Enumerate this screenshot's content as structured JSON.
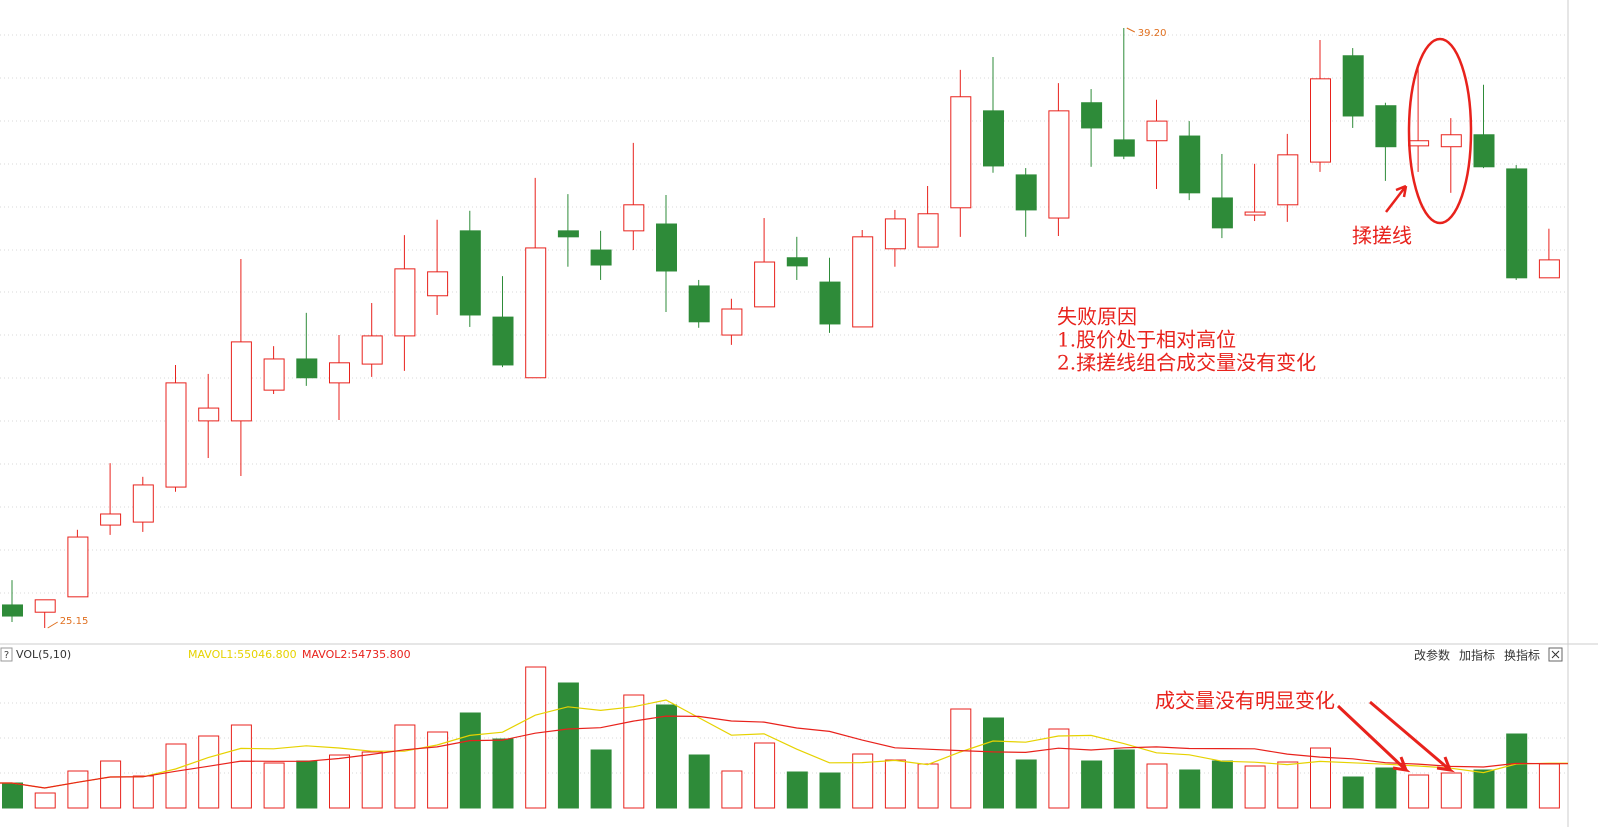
{
  "chart_data": {
    "type": "candlestick",
    "up_color": "#e8221c",
    "down_color": "#2e8b39",
    "open": [
      25.69,
      25.52,
      25.88,
      27.56,
      27.63,
      28.45,
      30.0,
      30.0,
      30.72,
      31.45,
      30.89,
      31.33,
      31.99,
      32.93,
      34.45,
      32.43,
      31.01,
      34.45,
      34.0,
      34.45,
      34.61,
      33.16,
      32.01,
      32.67,
      33.82,
      33.25,
      32.2,
      34.03,
      34.07,
      34.99,
      37.26,
      35.76,
      34.75,
      37.45,
      36.58,
      36.56,
      36.67,
      35.22,
      34.82,
      35.06,
      36.06,
      38.55,
      37.38,
      36.44,
      36.42,
      36.7,
      35.9,
      33.35
    ],
    "high": [
      26.27,
      25.81,
      27.45,
      29.01,
      28.69,
      31.31,
      31.1,
      33.79,
      31.75,
      32.53,
      32.01,
      32.76,
      34.35,
      34.71,
      34.92,
      33.39,
      35.69,
      35.31,
      34.45,
      36.51,
      35.29,
      33.3,
      32.86,
      34.75,
      34.31,
      33.82,
      34.47,
      34.94,
      35.5,
      38.22,
      38.52,
      35.92,
      37.91,
      37.77,
      39.2,
      37.52,
      37.02,
      36.25,
      36.02,
      36.72,
      38.92,
      38.73,
      37.45,
      38.29,
      37.09,
      37.87,
      35.99,
      34.5
    ],
    "low": [
      25.29,
      25.15,
      25.88,
      27.33,
      27.4,
      28.34,
      29.13,
      28.71,
      30.63,
      30.82,
      30.02,
      31.03,
      31.17,
      32.48,
      32.2,
      31.26,
      31.01,
      33.61,
      33.3,
      34.0,
      32.55,
      32.18,
      31.78,
      32.67,
      33.3,
      32.06,
      32.2,
      33.61,
      34.07,
      34.31,
      35.81,
      34.31,
      34.33,
      35.95,
      36.13,
      35.43,
      35.17,
      34.28,
      34.68,
      34.66,
      35.83,
      36.86,
      35.62,
      35.83,
      35.34,
      35.92,
      33.3,
      33.35
    ],
    "close": [
      25.43,
      25.81,
      27.28,
      27.82,
      28.5,
      30.89,
      30.3,
      31.85,
      31.45,
      31.01,
      31.36,
      31.99,
      33.56,
      33.49,
      32.48,
      31.31,
      34.05,
      34.31,
      33.65,
      35.06,
      33.51,
      32.32,
      32.62,
      33.72,
      33.63,
      32.27,
      34.31,
      34.73,
      34.85,
      37.59,
      35.97,
      34.94,
      37.26,
      36.86,
      36.2,
      37.02,
      35.34,
      34.52,
      34.89,
      36.23,
      38.01,
      37.14,
      36.42,
      36.56,
      36.7,
      35.95,
      33.35,
      33.77
    ],
    "volume": [
      31250,
      18750,
      46250,
      58750,
      40000,
      80000,
      90000,
      103750,
      56250,
      58750,
      66250,
      70000,
      103750,
      95000,
      118750,
      86250,
      176250,
      156250,
      72500,
      141250,
      128750,
      66250,
      46250,
      81250,
      45000,
      43750,
      67500,
      60000,
      55000,
      123750,
      112500,
      60000,
      98750,
      58750,
      72500,
      55000,
      47500,
      58750,
      52500,
      57500,
      75000,
      38750,
      50000,
      41250,
      43750,
      47500,
      92500,
      55000
    ],
    "high_label": "39.20",
    "low_label": "25.15",
    "volume_title": "VOL(5,10)",
    "ma_labels": [
      "MAVOL1:55046.800",
      "MAVOL2:54735.800"
    ],
    "ma_periods": [
      5,
      10
    ],
    "ma_colors": [
      "#e6d200",
      "#e8221c"
    ],
    "help": "?",
    "buttons": [
      "改参数",
      "加指标",
      "换指标"
    ],
    "annotations": {
      "pattern": "揉搓线",
      "reason_title": "失败原因",
      "reason_1": "1.股价处于相对高位",
      "reason_2": "2.揉搓线组合成交量没有变化",
      "volume_note": "成交量没有明显变化"
    }
  }
}
